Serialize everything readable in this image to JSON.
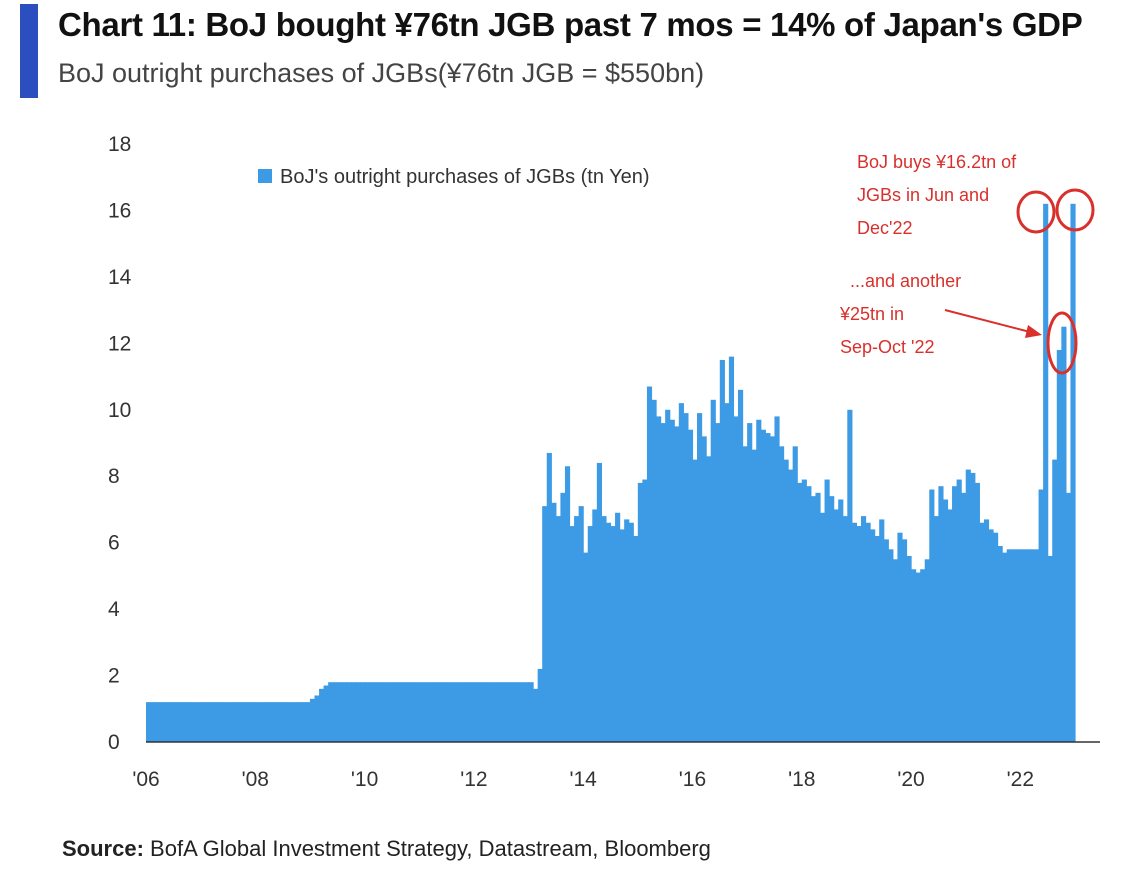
{
  "header": {
    "title": "Chart 11: BoJ bought ¥76tn JGB past 7 mos = 14% of Japan's GDP",
    "subtitle": "BoJ outright purchases of JGBs(¥76tn JGB = $550bn)"
  },
  "footer": {
    "source_label": "Source:",
    "source_text": "BofA Global Investment Strategy, Datastream, Bloomberg"
  },
  "colors": {
    "bar": "#3d9be6",
    "accent": "#2b4fbf",
    "annotation": "#d9302c"
  },
  "annotations": {
    "top_lines": [
      "BoJ buys ¥16.2tn of",
      "JGBs in Jun and",
      "Dec'22"
    ],
    "mid_lines": [
      "...and another",
      "¥25tn in",
      "Sep-Oct '22"
    ]
  },
  "chart_data": {
    "type": "bar",
    "title": "Chart 11: BoJ bought ¥76tn JGB past 7 mos = 14% of Japan's GDP",
    "subtitle": "BoJ outright purchases of JGBs(¥76tn JGB = $550bn)",
    "xlabel": "",
    "ylabel": "",
    "ylim": [
      0,
      18
    ],
    "yticks": [
      0,
      2,
      4,
      6,
      8,
      10,
      12,
      14,
      16,
      18
    ],
    "xlim": [
      2006.0,
      2023.0
    ],
    "xticks": [
      {
        "value": 2006,
        "label": "'06"
      },
      {
        "value": 2008,
        "label": "'08"
      },
      {
        "value": 2010,
        "label": "'10"
      },
      {
        "value": 2012,
        "label": "'12"
      },
      {
        "value": 2014,
        "label": "'14"
      },
      {
        "value": 2016,
        "label": "'16"
      },
      {
        "value": 2018,
        "label": "'18"
      },
      {
        "value": 2020,
        "label": "'20"
      },
      {
        "value": 2022,
        "label": "'22"
      }
    ],
    "legend": {
      "position": "top-left",
      "entries": [
        "BoJ's outright purchases of JGBs (tn Yen)"
      ]
    },
    "grid": false,
    "series": [
      {
        "name": "BoJ's outright purchases of JGBs (tn Yen)",
        "values": [
          1.2,
          1.2,
          1.2,
          1.2,
          1.2,
          1.2,
          1.2,
          1.2,
          1.2,
          1.2,
          1.2,
          1.2,
          1.2,
          1.2,
          1.2,
          1.2,
          1.2,
          1.2,
          1.2,
          1.2,
          1.2,
          1.2,
          1.2,
          1.2,
          1.2,
          1.2,
          1.2,
          1.2,
          1.2,
          1.2,
          1.2,
          1.2,
          1.2,
          1.2,
          1.2,
          1.2,
          1.3,
          1.4,
          1.6,
          1.7,
          1.8,
          1.8,
          1.8,
          1.8,
          1.8,
          1.8,
          1.8,
          1.8,
          1.8,
          1.8,
          1.8,
          1.8,
          1.8,
          1.8,
          1.8,
          1.8,
          1.8,
          1.8,
          1.8,
          1.8,
          1.8,
          1.8,
          1.8,
          1.8,
          1.8,
          1.8,
          1.8,
          1.8,
          1.8,
          1.8,
          1.8,
          1.8,
          1.8,
          1.8,
          1.8,
          1.8,
          1.8,
          1.8,
          1.8,
          1.8,
          1.8,
          1.8,
          1.8,
          1.8,
          1.8,
          1.6,
          2.2,
          7.1,
          8.7,
          7.2,
          6.8,
          7.5,
          8.3,
          6.5,
          6.8,
          7.1,
          5.7,
          6.5,
          7.0,
          8.4,
          6.8,
          6.6,
          6.5,
          6.9,
          6.4,
          6.7,
          6.6,
          6.2,
          7.8,
          7.9,
          10.7,
          10.3,
          9.8,
          9.6,
          10.0,
          9.7,
          9.5,
          10.2,
          9.9,
          9.4,
          8.5,
          9.9,
          9.2,
          8.6,
          10.3,
          9.6,
          11.5,
          10.2,
          11.6,
          9.8,
          10.6,
          8.9,
          9.6,
          8.8,
          9.7,
          9.4,
          9.3,
          9.2,
          9.8,
          8.9,
          8.5,
          8.2,
          8.9,
          7.8,
          7.9,
          7.7,
          7.4,
          7.5,
          6.9,
          7.9,
          7.4,
          7.0,
          7.3,
          6.8,
          10.0,
          6.6,
          6.5,
          6.8,
          6.6,
          6.4,
          6.2,
          6.7,
          6.1,
          5.8,
          5.5,
          6.3,
          6.1,
          5.6,
          5.2,
          5.1,
          5.2,
          5.5,
          7.6,
          6.8,
          7.7,
          7.3,
          7.0,
          7.7,
          7.9,
          7.5,
          8.2,
          8.1,
          7.8,
          6.6,
          6.7,
          6.4,
          6.3,
          5.9,
          5.7,
          5.8,
          5.8,
          5.8,
          5.8,
          5.8,
          5.8,
          5.8,
          7.6,
          16.2,
          5.6,
          8.5,
          11.8,
          12.5,
          7.5,
          16.2
        ]
      }
    ]
  }
}
